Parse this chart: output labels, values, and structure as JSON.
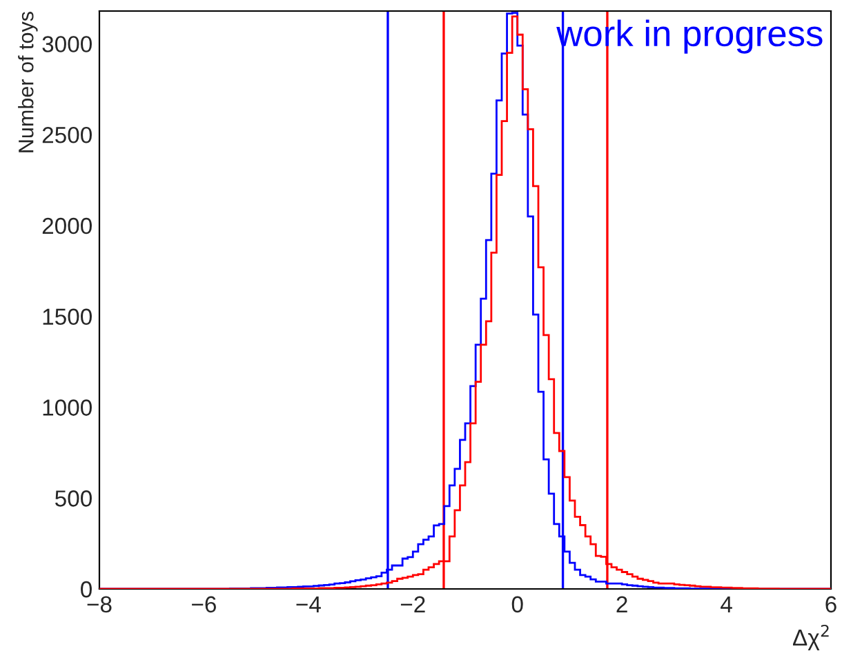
{
  "chart_data": {
    "type": "histogram",
    "xlabel": "Δχ$^{2}$",
    "ylabel": "Number of toys",
    "annotations": [
      "work in progress"
    ],
    "bins": [
      -8.0,
      -7.9,
      -7.8,
      -7.7,
      -7.6,
      -7.5,
      -7.4,
      -7.3,
      -7.2,
      -7.1,
      -7.0,
      -6.9,
      -6.8,
      -6.7,
      -6.6,
      -6.5,
      -6.4,
      -6.3,
      -6.2,
      -6.1,
      -6.0,
      -5.9,
      -5.8,
      -5.7,
      -5.6,
      -5.5,
      -5.4,
      -5.3,
      -5.2,
      -5.1,
      -5.0,
      -4.9,
      -4.8,
      -4.7,
      -4.6,
      -4.5,
      -4.4,
      -4.3,
      -4.2,
      -4.1,
      -4.0,
      -3.9,
      -3.8,
      -3.7,
      -3.6,
      -3.5,
      -3.4,
      -3.3,
      -3.2,
      -3.1,
      -3.0,
      -2.9,
      -2.8,
      -2.7,
      -2.6,
      -2.5,
      -2.4,
      -2.3,
      -2.2,
      -2.1,
      -2.0,
      -1.9,
      -1.8,
      -1.7,
      -1.6,
      -1.5,
      -1.4,
      -1.3,
      -1.2,
      -1.1,
      -1.0,
      -0.9,
      -0.8,
      -0.7,
      -0.6,
      -0.5,
      -0.4,
      -0.3,
      -0.2,
      -0.1,
      0.0,
      0.1,
      0.2,
      0.3,
      0.4,
      0.5,
      0.6,
      0.7,
      0.8,
      0.9,
      1.0,
      1.1,
      1.2,
      1.3,
      1.4,
      1.5,
      1.6,
      1.7,
      1.8,
      1.9,
      2.0,
      2.1,
      2.2,
      2.3,
      2.4,
      2.5,
      2.6,
      2.7,
      2.8,
      2.9,
      3.0,
      3.1,
      3.2,
      3.3,
      3.4,
      3.5,
      3.6,
      3.7,
      3.8,
      3.9,
      4.0,
      4.1,
      4.2,
      4.3,
      4.4,
      4.5,
      4.6,
      4.7,
      4.8,
      4.9,
      5.0,
      5.1,
      5.2,
      5.3,
      5.4,
      5.5,
      5.6,
      5.7,
      5.8,
      5.9,
      6.0
    ],
    "series": [
      {
        "color": "#0000ff",
        "values": [
          0,
          0,
          0,
          0,
          0,
          0,
          0,
          0,
          0,
          0,
          0,
          0,
          0,
          0,
          0,
          0,
          0,
          0,
          0,
          0,
          0,
          0,
          0,
          0,
          0,
          2,
          2,
          3,
          3,
          4,
          5,
          5,
          6,
          7,
          8,
          9,
          10,
          11,
          12,
          14,
          15,
          17,
          19,
          21,
          24,
          30,
          32,
          36,
          42,
          48,
          52,
          58,
          64,
          70,
          90,
          106,
          129,
          129,
          167,
          175,
          205,
          246,
          271,
          289,
          350,
          357,
          456,
          570,
          661,
          820,
          911,
          1116,
          1344,
          1597,
          1920,
          2285,
          2688,
          2946,
          3166,
          3170,
          2990,
          2610,
          2050,
          1510,
          1085,
          713,
          524,
          357,
          289,
          205,
          144,
          106,
          76,
          68,
          53,
          40,
          40,
          30,
          30,
          30,
          25,
          20,
          18,
          15,
          12,
          10,
          8,
          7,
          6,
          5,
          4,
          3,
          3,
          2,
          2,
          2,
          1,
          1,
          1,
          1,
          0,
          0,
          0,
          0,
          0,
          0,
          0,
          0,
          0,
          0,
          0,
          0,
          0,
          0,
          0,
          0,
          0,
          0,
          0,
          0
        ]
      },
      {
        "color": "#ff0000",
        "values": [
          0,
          0,
          0,
          0,
          0,
          0,
          0,
          0,
          0,
          0,
          0,
          0,
          0,
          0,
          0,
          0,
          0,
          0,
          0,
          0,
          0,
          0,
          0,
          0,
          0,
          0,
          0,
          0,
          0,
          0,
          0,
          0,
          0,
          0,
          0,
          1,
          1,
          2,
          2,
          2,
          3,
          3,
          4,
          4,
          5,
          6,
          7,
          8,
          10,
          12,
          15,
          18,
          20,
          25,
          30,
          35,
          43,
          56,
          61,
          68,
          76,
          81,
          106,
          119,
          137,
          152,
          152,
          289,
          433,
          570,
          698,
          911,
          1140,
          1344,
          1473,
          1850,
          2278,
          2574,
          2950,
          3150,
          3050,
          2750,
          2530,
          2217,
          1770,
          1397,
          1154,
          858,
          759,
          615,
          486,
          397,
          351,
          289,
          246,
          182,
          177,
          137,
          119,
          106,
          93,
          81,
          68,
          56,
          50,
          43,
          35,
          30,
          30,
          30,
          25,
          22,
          20,
          18,
          15,
          13,
          12,
          10,
          9,
          8,
          7,
          6,
          5,
          4,
          3,
          3,
          2,
          2,
          1,
          1,
          0,
          0,
          0,
          0,
          0,
          0,
          0,
          0,
          0,
          0
        ]
      }
    ],
    "ref_lines": [
      {
        "axis": "x",
        "value": -2.48,
        "color": "#0000ff"
      },
      {
        "axis": "x",
        "value": 0.87,
        "color": "#0000ff"
      },
      {
        "axis": "x",
        "value": -1.41,
        "color": "#ff0000"
      },
      {
        "axis": "x",
        "value": 1.72,
        "color": "#ff0000"
      }
    ],
    "xlim": [
      -8,
      6
    ],
    "xticks": [
      -8,
      -6,
      -4,
      -2,
      0,
      2,
      4,
      6
    ],
    "ylim": [
      0,
      3180
    ],
    "yticks": [
      0,
      500,
      1000,
      1500,
      2000,
      2500,
      3000
    ],
    "grid": false,
    "legend": false
  }
}
